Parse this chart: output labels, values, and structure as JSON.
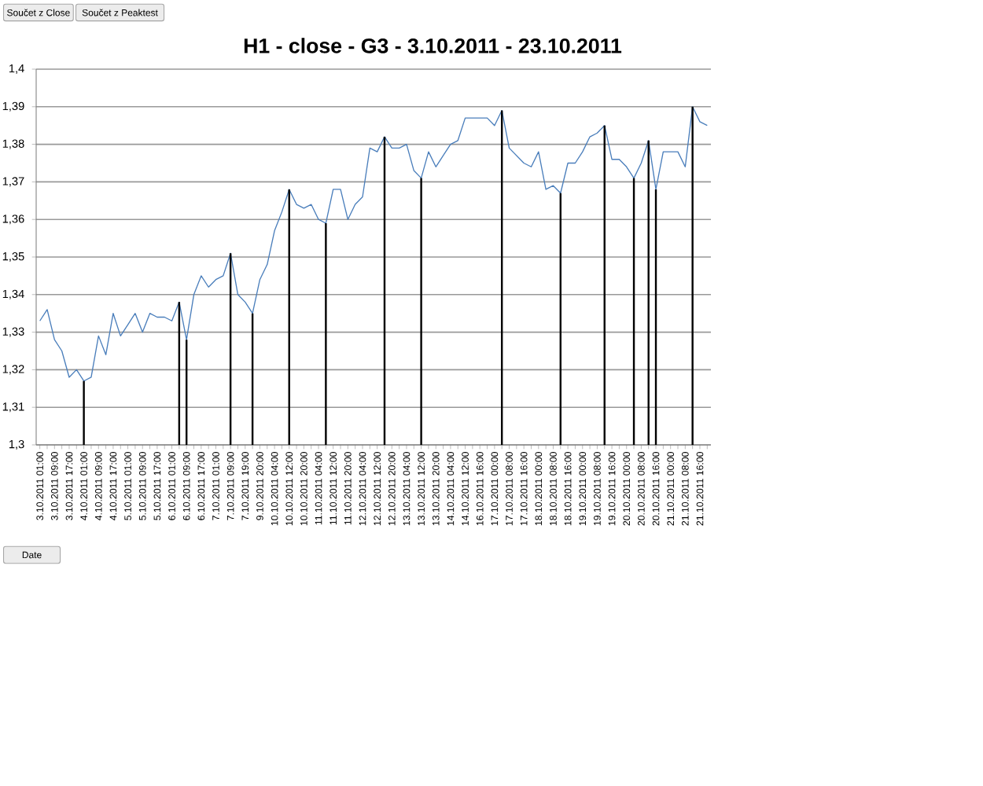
{
  "chart_data": {
    "type": "line",
    "title": "H1 - close - G3 - 3.10.2011 - 23.10.2011",
    "categories": [
      "3.10.2011 01:00",
      null,
      "3.10.2011 09:00",
      null,
      "3.10.2011 17:00",
      null,
      "4.10.2011 01:00",
      null,
      "4.10.2011 09:00",
      null,
      "4.10.2011 17:00",
      null,
      "5.10.2011 01:00",
      null,
      "5.10.2011 09:00",
      null,
      "5.10.2011 17:00",
      null,
      "6.10.2011 01:00",
      null,
      "6.10.2011 09:00",
      null,
      "6.10.2011 17:00",
      null,
      "7.10.2011 01:00",
      null,
      "7.10.2011 09:00",
      null,
      "7.10.2011 19:00",
      null,
      "9.10.2011 20:00",
      null,
      "10.10.2011 04:00",
      null,
      "10.10.2011 12:00",
      null,
      "10.10.2011 20:00",
      null,
      "11.10.2011 04:00",
      null,
      "11.10.2011 12:00",
      null,
      "11.10.2011 20:00",
      null,
      "12.10.2011 04:00",
      null,
      "12.10.2011 12:00",
      null,
      "12.10.2011 20:00",
      null,
      "13.10.2011 04:00",
      null,
      "13.10.2011 12:00",
      null,
      "13.10.2011 20:00",
      null,
      "14.10.2011 04:00",
      null,
      "14.10.2011 12:00",
      null,
      "16.10.2011 16:00",
      null,
      "17.10.2011 00:00",
      null,
      "17.10.2011 08:00",
      null,
      "17.10.2011 16:00",
      null,
      "18.10.2011 00:00",
      null,
      "18.10.2011 08:00",
      null,
      "18.10.2011 16:00",
      null,
      "19.10.2011 00:00",
      null,
      "19.10.2011 08:00",
      null,
      "19.10.2011 16:00",
      null,
      "20.10.2011 00:00",
      null,
      "20.10.2011 08:00",
      null,
      "20.10.2011 16:00",
      null,
      "21.10.2011 00:00",
      null,
      "21.10.2011 08:00",
      null,
      "21.10.2011 16:00",
      null
    ],
    "series": [
      {
        "color": "#4a7ebb",
        "values": [
          1.333,
          1.336,
          1.328,
          1.325,
          1.318,
          1.32,
          1.317,
          1.318,
          1.329,
          1.324,
          1.335,
          1.329,
          1.332,
          1.335,
          1.33,
          1.335,
          1.334,
          1.334,
          1.333,
          1.338,
          1.328,
          1.34,
          1.345,
          1.342,
          1.344,
          1.345,
          1.351,
          1.34,
          1.338,
          1.335,
          1.344,
          1.348,
          1.357,
          1.362,
          1.368,
          1.364,
          1.363,
          1.364,
          1.36,
          1.359,
          1.368,
          1.368,
          1.36,
          1.364,
          1.366,
          1.379,
          1.378,
          1.382,
          1.379,
          1.379,
          1.38,
          1.373,
          1.371,
          1.378,
          1.374,
          1.377,
          1.38,
          1.381,
          1.387,
          1.387,
          1.387,
          1.387,
          1.385,
          1.389,
          1.379,
          1.377,
          1.375,
          1.374,
          1.378,
          1.368,
          1.369,
          1.367,
          1.375,
          1.375,
          1.378,
          1.382,
          1.383,
          1.385,
          1.376,
          1.376,
          1.374,
          1.371,
          1.375,
          1.381,
          1.368,
          1.378,
          1.378,
          1.378,
          1.374,
          1.39,
          1.386,
          1.385
        ]
      },
      {
        "type": "bar",
        "color": "#000000",
        "values": [
          null,
          null,
          null,
          null,
          null,
          null,
          1.317,
          null,
          null,
          null,
          null,
          null,
          null,
          null,
          null,
          null,
          null,
          null,
          null,
          1.338,
          1.328,
          null,
          null,
          null,
          null,
          null,
          1.351,
          null,
          null,
          1.335,
          null,
          null,
          null,
          null,
          1.368,
          null,
          null,
          null,
          null,
          1.359,
          null,
          null,
          null,
          null,
          null,
          null,
          null,
          1.382,
          null,
          null,
          null,
          null,
          1.371,
          null,
          null,
          null,
          null,
          null,
          null,
          null,
          null,
          null,
          null,
          1.389,
          null,
          null,
          null,
          null,
          null,
          null,
          null,
          1.367,
          null,
          null,
          null,
          null,
          null,
          1.385,
          null,
          null,
          null,
          1.371,
          null,
          1.381,
          1.368,
          null,
          null,
          null,
          null,
          1.39,
          null,
          null
        ]
      }
    ],
    "ylim": [
      1.3,
      1.4
    ],
    "yticks": [
      {
        "value": 1.3,
        "label": "1,3"
      },
      {
        "value": 1.31,
        "label": "1,31"
      },
      {
        "value": 1.32,
        "label": "1,32"
      },
      {
        "value": 1.33,
        "label": "1,33"
      },
      {
        "value": 1.34,
        "label": "1,34"
      },
      {
        "value": 1.35,
        "label": "1,35"
      },
      {
        "value": 1.36,
        "label": "1,36"
      },
      {
        "value": 1.37,
        "label": "1,37"
      },
      {
        "value": 1.38,
        "label": "1,38"
      },
      {
        "value": 1.39,
        "label": "1,39"
      },
      {
        "value": 1.4,
        "label": "1,4"
      }
    ],
    "grid": "y",
    "annotations": [
      "Součet z Close",
      "Součet z Peaktest",
      "Date"
    ]
  }
}
